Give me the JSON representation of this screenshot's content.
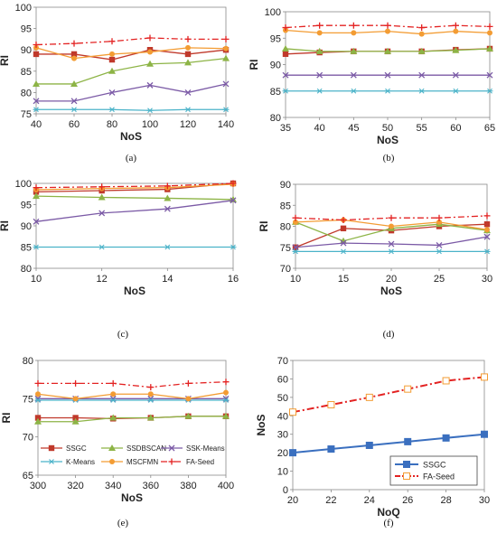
{
  "series_styles": {
    "SSGC": {
      "color": "#c0392b",
      "marker": "square",
      "dash": ""
    },
    "SSDBSCAN": {
      "color": "#8db446",
      "marker": "triangle",
      "dash": ""
    },
    "SSK-Means": {
      "color": "#7b5aa6",
      "marker": "x",
      "dash": ""
    },
    "K-Means": {
      "color": "#4bb3c9",
      "marker": "star",
      "dash": ""
    },
    "MSCFMN": {
      "color": "#f39c33",
      "marker": "circle",
      "dash": ""
    },
    "FA-Seed": {
      "color": "#e32222",
      "marker": "plus",
      "dash": "7,3,2,3"
    }
  },
  "legend": {
    "items": [
      "SSGC",
      "SSDBSCAN",
      "SSK-Means",
      "K-Means",
      "MSCFMN",
      "FA-Seed"
    ]
  },
  "chart_data": [
    {
      "type": "line",
      "caption": "(a)",
      "xlabel": "NoS",
      "ylabel": "RI",
      "xlim": [
        40,
        140
      ],
      "ylim": [
        75,
        100
      ],
      "xticks": [
        40,
        60,
        80,
        100,
        120,
        140
      ],
      "yticks": [
        75,
        80,
        85,
        90,
        95,
        100
      ],
      "x": [
        40,
        60,
        80,
        100,
        120,
        140
      ],
      "series": [
        {
          "name": "SSGC",
          "values": [
            89,
            89,
            87.7,
            90,
            89,
            90
          ]
        },
        {
          "name": "SSDBSCAN",
          "values": [
            82,
            82,
            85,
            86.7,
            87,
            88
          ]
        },
        {
          "name": "SSK-Means",
          "values": [
            78,
            78,
            80,
            81.7,
            80,
            82
          ]
        },
        {
          "name": "K-Means",
          "values": [
            76,
            76,
            76,
            75.8,
            76,
            76
          ]
        },
        {
          "name": "MSCFMN",
          "values": [
            90.5,
            88,
            89,
            89.5,
            90.5,
            90.3
          ]
        },
        {
          "name": "FA-Seed",
          "values": [
            91.2,
            91.5,
            92,
            92.8,
            92.5,
            92.5
          ]
        }
      ]
    },
    {
      "type": "line",
      "caption": "(b)",
      "xlabel": "NoS",
      "ylabel": "RI",
      "xlim": [
        35,
        65
      ],
      "ylim": [
        80,
        100
      ],
      "xticks": [
        35,
        40,
        45,
        50,
        55,
        60,
        65
      ],
      "yticks": [
        80,
        85,
        90,
        95,
        100
      ],
      "x": [
        35,
        40,
        45,
        50,
        55,
        60,
        65
      ],
      "series": [
        {
          "name": "SSGC",
          "values": [
            92,
            92.3,
            92.5,
            92.5,
            92.5,
            92.8,
            93
          ]
        },
        {
          "name": "SSDBSCAN",
          "values": [
            93,
            92.5,
            92.5,
            92.5,
            92.5,
            92.7,
            93
          ]
        },
        {
          "name": "SSK-Means",
          "values": [
            88,
            88,
            88,
            88,
            88,
            88,
            88
          ]
        },
        {
          "name": "K-Means",
          "values": [
            85,
            85,
            85,
            85,
            85,
            85,
            85
          ]
        },
        {
          "name": "MSCFMN",
          "values": [
            96.5,
            96,
            96,
            96.3,
            95.8,
            96.3,
            96
          ]
        },
        {
          "name": "FA-Seed",
          "values": [
            97,
            97.4,
            97.4,
            97.4,
            97,
            97.4,
            97.2
          ]
        }
      ]
    },
    {
      "type": "line",
      "caption": "(c)",
      "xlabel": "NoS",
      "ylabel": "RI",
      "xlim": [
        10,
        16
      ],
      "ylim": [
        80,
        100
      ],
      "xticks": [
        10,
        12,
        14,
        16
      ],
      "yticks": [
        80,
        85,
        90,
        95,
        100
      ],
      "x": [
        10,
        12,
        14,
        16
      ],
      "series": [
        {
          "name": "SSGC",
          "values": [
            98,
            98.3,
            98.6,
            100
          ]
        },
        {
          "name": "SSDBSCAN",
          "values": [
            97,
            96.7,
            96.5,
            96.2
          ]
        },
        {
          "name": "SSK-Means",
          "values": [
            91,
            93,
            94,
            96
          ]
        },
        {
          "name": "K-Means",
          "values": [
            85,
            85,
            85,
            85
          ]
        },
        {
          "name": "MSCFMN",
          "values": [
            98.5,
            98.8,
            99,
            99.8
          ]
        },
        {
          "name": "FA-Seed",
          "values": [
            99,
            99.2,
            99.4,
            100
          ]
        }
      ]
    },
    {
      "type": "line",
      "caption": "(d)",
      "xlabel": "NoS",
      "ylabel": "RI",
      "xlim": [
        10,
        30
      ],
      "ylim": [
        70,
        90
      ],
      "xticks": [
        10,
        15,
        20,
        25,
        30
      ],
      "yticks": [
        70,
        75,
        80,
        85,
        90
      ],
      "x": [
        10,
        15,
        20,
        25,
        30
      ],
      "series": [
        {
          "name": "SSGC",
          "values": [
            75,
            79.5,
            79,
            80,
            80.5
          ]
        },
        {
          "name": "SSDBSCAN",
          "values": [
            81,
            76.5,
            79.5,
            80.5,
            79
          ]
        },
        {
          "name": "SSK-Means",
          "values": [
            75,
            76,
            75.8,
            75.5,
            77.5
          ]
        },
        {
          "name": "K-Means",
          "values": [
            74,
            74,
            74,
            74,
            74
          ]
        },
        {
          "name": "MSCFMN",
          "values": [
            81,
            81.5,
            80,
            81,
            79.2
          ]
        },
        {
          "name": "FA-Seed",
          "values": [
            82,
            81.5,
            82,
            82,
            82.5
          ]
        }
      ]
    },
    {
      "type": "line",
      "caption": "(e)",
      "xlabel": "NoS",
      "ylabel": "RI",
      "xlim": [
        300,
        400
      ],
      "ylim": [
        65,
        80
      ],
      "xticks": [
        300,
        320,
        340,
        360,
        380,
        400
      ],
      "yticks": [
        65,
        70,
        75,
        80
      ],
      "x": [
        300,
        320,
        340,
        360,
        380,
        400
      ],
      "series": [
        {
          "name": "SSGC",
          "values": [
            72.5,
            72.5,
            72.4,
            72.5,
            72.7,
            72.7
          ]
        },
        {
          "name": "SSDBSCAN",
          "values": [
            72,
            72,
            72.5,
            72.5,
            72.7,
            72.7
          ]
        },
        {
          "name": "SSK-Means",
          "values": [
            75,
            75,
            75,
            75,
            75,
            75
          ]
        },
        {
          "name": "K-Means",
          "values": [
            74.8,
            74.8,
            74.8,
            74.8,
            74.8,
            74.8
          ]
        },
        {
          "name": "MSCFMN",
          "values": [
            75.6,
            75,
            75.6,
            75.6,
            75,
            75.8
          ]
        },
        {
          "name": "FA-Seed",
          "values": [
            77,
            77,
            77,
            76.5,
            77,
            77.2
          ]
        }
      ]
    },
    {
      "type": "line",
      "caption": "(f)",
      "xlabel": "NoQ",
      "ylabel": "NoS",
      "xlim": [
        20,
        30
      ],
      "ylim": [
        0,
        70
      ],
      "xticks": [
        20,
        22,
        24,
        26,
        28,
        30
      ],
      "yticks": [
        0,
        10,
        20,
        30,
        40,
        50,
        60,
        70
      ],
      "x": [
        20,
        22,
        24,
        26,
        28,
        30
      ],
      "series": [
        {
          "name": "SSGC",
          "values": [
            20,
            22,
            24,
            26,
            28,
            30
          ],
          "color": "#3a6fbf",
          "marker": "square-filled"
        },
        {
          "name": "FA-Seed",
          "values": [
            42,
            46,
            50,
            54.5,
            59,
            61
          ],
          "color": "#e32222",
          "marker": "square-open"
        }
      ]
    }
  ]
}
